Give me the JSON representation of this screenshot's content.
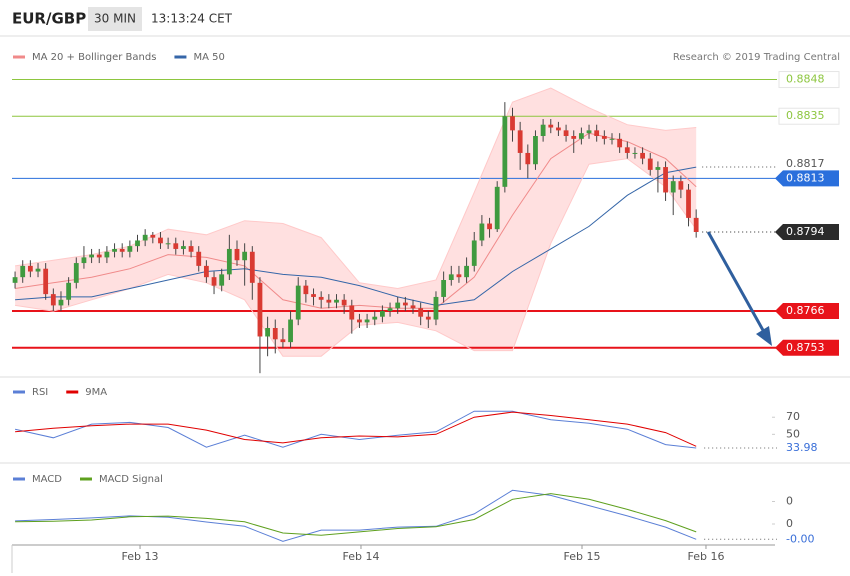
{
  "header": {
    "symbol": "EUR/GBP",
    "interval": "30 MIN",
    "time": "13:13:24 CET",
    "credit": "Research © 2019 Trading Central"
  },
  "chart_data": [
    {
      "type": "candlestick",
      "xlim": [
        -0.4,
        99.3
      ],
      "ylim": [
        0.8743,
        0.8862
      ],
      "xticks": [
        {
          "value": 16.33,
          "label": "Feb 13"
        },
        {
          "value": 45.2,
          "label": "Feb 14"
        },
        {
          "value": 74.08,
          "label": "Feb 15"
        },
        {
          "value": 90.28,
          "label": "Feb 16"
        }
      ],
      "up_color": "#3f9a3f",
      "down_color": "#d93a32",
      "candles": [
        [
          0.8776,
          0.878,
          0.8774,
          0.8778
        ],
        [
          0.8778,
          0.8784,
          0.8776,
          0.8782
        ],
        [
          0.8782,
          0.8784,
          0.8778,
          0.878
        ],
        [
          0.878,
          0.8783,
          0.8778,
          0.8781
        ],
        [
          0.8781,
          0.8783,
          0.877,
          0.8772
        ],
        [
          0.8772,
          0.8774,
          0.8766,
          0.8768
        ],
        [
          0.8768,
          0.8773,
          0.8766,
          0.877
        ],
        [
          0.877,
          0.8778,
          0.8768,
          0.8776
        ],
        [
          0.8776,
          0.8785,
          0.8774,
          0.8783
        ],
        [
          0.8783,
          0.8789,
          0.8781,
          0.8785
        ],
        [
          0.8785,
          0.8788,
          0.8783,
          0.8786
        ],
        [
          0.8786,
          0.8788,
          0.8783,
          0.8785
        ],
        [
          0.8785,
          0.8789,
          0.8783,
          0.8787
        ],
        [
          0.8787,
          0.879,
          0.8785,
          0.8788
        ],
        [
          0.8788,
          0.879,
          0.8785,
          0.8787
        ],
        [
          0.8787,
          0.8791,
          0.8785,
          0.8789
        ],
        [
          0.8789,
          0.8793,
          0.8787,
          0.8791
        ],
        [
          0.8791,
          0.8795,
          0.8789,
          0.8793
        ],
        [
          0.8793,
          0.8794,
          0.879,
          0.8792
        ],
        [
          0.8792,
          0.8794,
          0.8788,
          0.879
        ],
        [
          0.879,
          0.8792,
          0.8788,
          0.879
        ],
        [
          0.879,
          0.8792,
          0.8786,
          0.8788
        ],
        [
          0.8788,
          0.8791,
          0.8786,
          0.8789
        ],
        [
          0.8789,
          0.8791,
          0.8785,
          0.8787
        ],
        [
          0.8787,
          0.8789,
          0.878,
          0.8782
        ],
        [
          0.8782,
          0.8784,
          0.8776,
          0.8778
        ],
        [
          0.8778,
          0.878,
          0.8772,
          0.8775
        ],
        [
          0.8775,
          0.8781,
          0.8773,
          0.8779
        ],
        [
          0.8779,
          0.8793,
          0.8777,
          0.8788
        ],
        [
          0.8788,
          0.8791,
          0.8782,
          0.8784
        ],
        [
          0.8784,
          0.879,
          0.8775,
          0.8787
        ],
        [
          0.8787,
          0.8789,
          0.877,
          0.8776
        ],
        [
          0.8776,
          0.8778,
          0.8744,
          0.8757
        ],
        [
          0.8757,
          0.8764,
          0.875,
          0.876
        ],
        [
          0.876,
          0.8763,
          0.8751,
          0.8756
        ],
        [
          0.8756,
          0.876,
          0.8753,
          0.8755
        ],
        [
          0.8755,
          0.8766,
          0.8753,
          0.8763
        ],
        [
          0.8763,
          0.8778,
          0.8761,
          0.8775
        ],
        [
          0.8775,
          0.8777,
          0.8769,
          0.8772
        ],
        [
          0.8772,
          0.8774,
          0.8768,
          0.8771
        ],
        [
          0.8771,
          0.8773,
          0.8767,
          0.877
        ],
        [
          0.877,
          0.8772,
          0.8767,
          0.8769
        ],
        [
          0.8769,
          0.8772,
          0.8767,
          0.877
        ],
        [
          0.877,
          0.8772,
          0.8765,
          0.8768
        ],
        [
          0.8768,
          0.877,
          0.8758,
          0.8763
        ],
        [
          0.8763,
          0.8765,
          0.876,
          0.8762
        ],
        [
          0.8762,
          0.8765,
          0.876,
          0.8763
        ],
        [
          0.8763,
          0.8766,
          0.8761,
          0.8764
        ],
        [
          0.8764,
          0.8768,
          0.8762,
          0.8766
        ],
        [
          0.8766,
          0.8769,
          0.8764,
          0.8767
        ],
        [
          0.8767,
          0.8771,
          0.8765,
          0.8769
        ],
        [
          0.8769,
          0.8771,
          0.8766,
          0.8768
        ],
        [
          0.8768,
          0.877,
          0.8765,
          0.8767
        ],
        [
          0.8767,
          0.8769,
          0.8761,
          0.8764
        ],
        [
          0.8764,
          0.8766,
          0.876,
          0.8763
        ],
        [
          0.8763,
          0.8773,
          0.8761,
          0.8771
        ],
        [
          0.8771,
          0.878,
          0.8769,
          0.8777
        ],
        [
          0.8777,
          0.8782,
          0.8775,
          0.8779
        ],
        [
          0.8779,
          0.8782,
          0.8776,
          0.8778
        ],
        [
          0.8778,
          0.8785,
          0.8776,
          0.8782
        ],
        [
          0.8782,
          0.8794,
          0.878,
          0.8791
        ],
        [
          0.8791,
          0.88,
          0.8789,
          0.8797
        ],
        [
          0.8797,
          0.8799,
          0.8792,
          0.8795
        ],
        [
          0.8795,
          0.8812,
          0.8794,
          0.881
        ],
        [
          0.881,
          0.884,
          0.8808,
          0.8835
        ],
        [
          0.8835,
          0.8838,
          0.8826,
          0.883
        ],
        [
          0.883,
          0.8833,
          0.8816,
          0.8822
        ],
        [
          0.8822,
          0.8825,
          0.8813,
          0.8818
        ],
        [
          0.8818,
          0.883,
          0.8816,
          0.8828
        ],
        [
          0.8828,
          0.8834,
          0.8826,
          0.8832
        ],
        [
          0.8832,
          0.8834,
          0.8829,
          0.8831
        ],
        [
          0.8831,
          0.8833,
          0.8828,
          0.883
        ],
        [
          0.883,
          0.8832,
          0.8826,
          0.8828
        ],
        [
          0.8828,
          0.883,
          0.8822,
          0.8827
        ],
        [
          0.8827,
          0.8831,
          0.8825,
          0.8829
        ],
        [
          0.8829,
          0.8832,
          0.8827,
          0.883
        ],
        [
          0.883,
          0.8832,
          0.8826,
          0.8828
        ],
        [
          0.8828,
          0.883,
          0.8825,
          0.8827
        ],
        [
          0.8827,
          0.8829,
          0.8825,
          0.8827
        ],
        [
          0.8827,
          0.8829,
          0.8822,
          0.8824
        ],
        [
          0.8824,
          0.8826,
          0.882,
          0.8822
        ],
        [
          0.8822,
          0.8824,
          0.882,
          0.8822
        ],
        [
          0.8822,
          0.8824,
          0.8818,
          0.882
        ],
        [
          0.882,
          0.8822,
          0.8814,
          0.8816
        ],
        [
          0.8816,
          0.8819,
          0.8808,
          0.8817
        ],
        [
          0.8817,
          0.8819,
          0.8805,
          0.8808
        ],
        [
          0.8808,
          0.8814,
          0.88,
          0.8812
        ],
        [
          0.8812,
          0.8814,
          0.8806,
          0.8809
        ],
        [
          0.8809,
          0.8811,
          0.8796,
          0.8799
        ],
        [
          0.8799,
          0.8802,
          0.8792,
          0.8794
        ]
      ],
      "x": [
        0,
        5,
        10,
        15,
        20,
        25,
        30,
        35,
        40,
        45,
        50,
        55,
        60,
        65,
        70,
        75,
        80,
        85,
        89
      ],
      "series": [
        {
          "name": "MA 20 + Bollinger Bands",
          "color": "#f08a8a",
          "band_color": "#ffe0e0",
          "values": [
            0.8774,
            0.8776,
            0.8778,
            0.8781,
            0.8786,
            0.8785,
            0.8782,
            0.877,
            0.8767,
            0.8768,
            0.8767,
            0.8767,
            0.8778,
            0.88,
            0.882,
            0.8829,
            0.8826,
            0.882,
            0.881
          ],
          "upper": [
            0.8782,
            0.8784,
            0.8786,
            0.8789,
            0.8795,
            0.8793,
            0.8798,
            0.8797,
            0.8792,
            0.8776,
            0.8774,
            0.8777,
            0.8808,
            0.884,
            0.8845,
            0.8838,
            0.8832,
            0.883,
            0.8831
          ],
          "lower": [
            0.8768,
            0.8766,
            0.877,
            0.8774,
            0.8779,
            0.8776,
            0.877,
            0.875,
            0.875,
            0.8761,
            0.8762,
            0.8759,
            0.8752,
            0.8752,
            0.879,
            0.8818,
            0.882,
            0.881,
            0.8795
          ]
        },
        {
          "name": "MA 50",
          "color": "#3566a8",
          "values": [
            0.877,
            0.8771,
            0.8771,
            0.8774,
            0.8777,
            0.878,
            0.8781,
            0.8779,
            0.8778,
            0.8775,
            0.8771,
            0.8768,
            0.877,
            0.878,
            0.8788,
            0.8796,
            0.8807,
            0.8815,
            0.8817
          ]
        }
      ],
      "levels": [
        {
          "value": 0.8848,
          "color": "#8dc63f",
          "style": "solid",
          "label_style": "outline"
        },
        {
          "value": 0.8835,
          "color": "#8dc63f",
          "style": "solid",
          "label_style": "outline"
        },
        {
          "value": 0.8817,
          "color": "#555555",
          "style": "dotted",
          "label_style": "plain"
        },
        {
          "value": 0.8813,
          "color": "#2a6fdc",
          "style": "solid",
          "label_style": "filled"
        },
        {
          "value": 0.8794,
          "color": "#2b2b2b",
          "style": "dotted",
          "label_style": "filled"
        },
        {
          "value": 0.8766,
          "color": "#e8131a",
          "style": "solid",
          "label_style": "filled"
        },
        {
          "value": 0.8753,
          "color": "#e8131a",
          "style": "solid",
          "label_style": "filled"
        }
      ]
    },
    {
      "type": "line",
      "x": [
        0,
        5,
        10,
        15,
        20,
        25,
        30,
        35,
        40,
        45,
        50,
        55,
        60,
        65,
        70,
        75,
        80,
        85,
        89
      ],
      "ylim": [
        20,
        110
      ],
      "yticks": [
        70,
        50
      ],
      "series": [
        {
          "name": "RSI",
          "color": "#5b7fd6",
          "values": [
            56,
            46,
            62,
            64,
            58,
            35,
            49,
            35,
            50,
            44,
            49,
            53,
            77,
            77,
            67,
            63,
            56,
            38,
            33.98
          ]
        },
        {
          "name": "9MA",
          "color": "#e00000",
          "values": [
            53,
            57,
            60,
            62,
            62,
            55,
            44,
            40,
            46,
            48,
            47,
            50,
            70,
            76,
            72,
            67,
            62,
            52,
            36
          ]
        }
      ],
      "current": {
        "value": 33.98,
        "color": "#3a6fd8"
      }
    },
    {
      "type": "line",
      "x": [
        0,
        5,
        10,
        15,
        20,
        25,
        30,
        35,
        40,
        45,
        50,
        55,
        60,
        65,
        70,
        75,
        80,
        85,
        89
      ],
      "ylim": [
        -0.0008,
        0.0024
      ],
      "yticks": [
        {
          "value": 0.001,
          "label": "0"
        },
        {
          "value": 0,
          "label": "0"
        }
      ],
      "series": [
        {
          "name": "MACD",
          "color": "#5b7fd6",
          "values": [
            0.00014,
            0.0002,
            0.00027,
            0.00036,
            0.0003,
            9e-05,
            -0.0001,
            -0.00077,
            -0.00027,
            -0.00027,
            -0.00014,
            -0.0001,
            0.00045,
            0.0015,
            0.00127,
            0.00082,
            0.00036,
            -0.00014,
            -0.00068
          ]
        },
        {
          "name": "MACD Signal",
          "color": "#5ea01e",
          "values": [
            0.0001,
            0.00012,
            0.00018,
            0.00032,
            0.00035,
            0.00025,
            0.0001,
            -0.0004,
            -0.0005,
            -0.00035,
            -0.0002,
            -0.00012,
            0.0002,
            0.0011,
            0.00135,
            0.0011,
            0.00065,
            0.00015,
            -0.00035
          ]
        }
      ],
      "current": {
        "value": -0.00068,
        "label": "-0.00",
        "color": "#3a6fd8"
      }
    }
  ]
}
